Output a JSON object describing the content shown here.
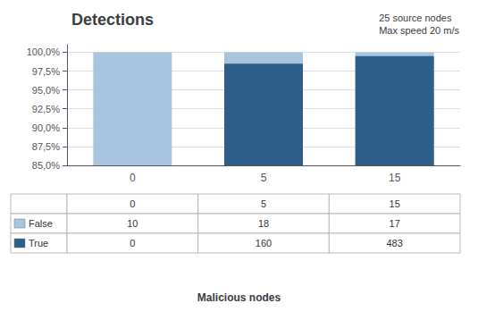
{
  "chart_data": {
    "type": "bar",
    "title": "Detections",
    "annotation": "25 source nodes\nMax speed 20 m/s",
    "xlabel": "Malicious nodes",
    "categories": [
      "0",
      "5",
      "15"
    ],
    "series": [
      {
        "name": "False",
        "color": "#a8c4df",
        "values": [
          100.0,
          100.0,
          100.0
        ],
        "counts": [
          10,
          18,
          17
        ]
      },
      {
        "name": "True",
        "color": "#2e5f8a",
        "values": [
          85.0,
          98.48314606741573,
          99.49
        ],
        "counts": [
          0,
          160,
          483
        ]
      }
    ],
    "ylim": [
      85.0,
      101.0
    ],
    "yticks": [
      {
        "value": 85.0,
        "label": "85,0%"
      },
      {
        "value": 87.5,
        "label": "87,5%"
      },
      {
        "value": 90.0,
        "label": "90,0%"
      },
      {
        "value": 92.5,
        "label": "92,5%"
      },
      {
        "value": 95.0,
        "label": "95,0%"
      },
      {
        "value": 97.5,
        "label": "97,5%"
      },
      {
        "value": 100.0,
        "label": "100,0%"
      }
    ],
    "grid": true
  }
}
